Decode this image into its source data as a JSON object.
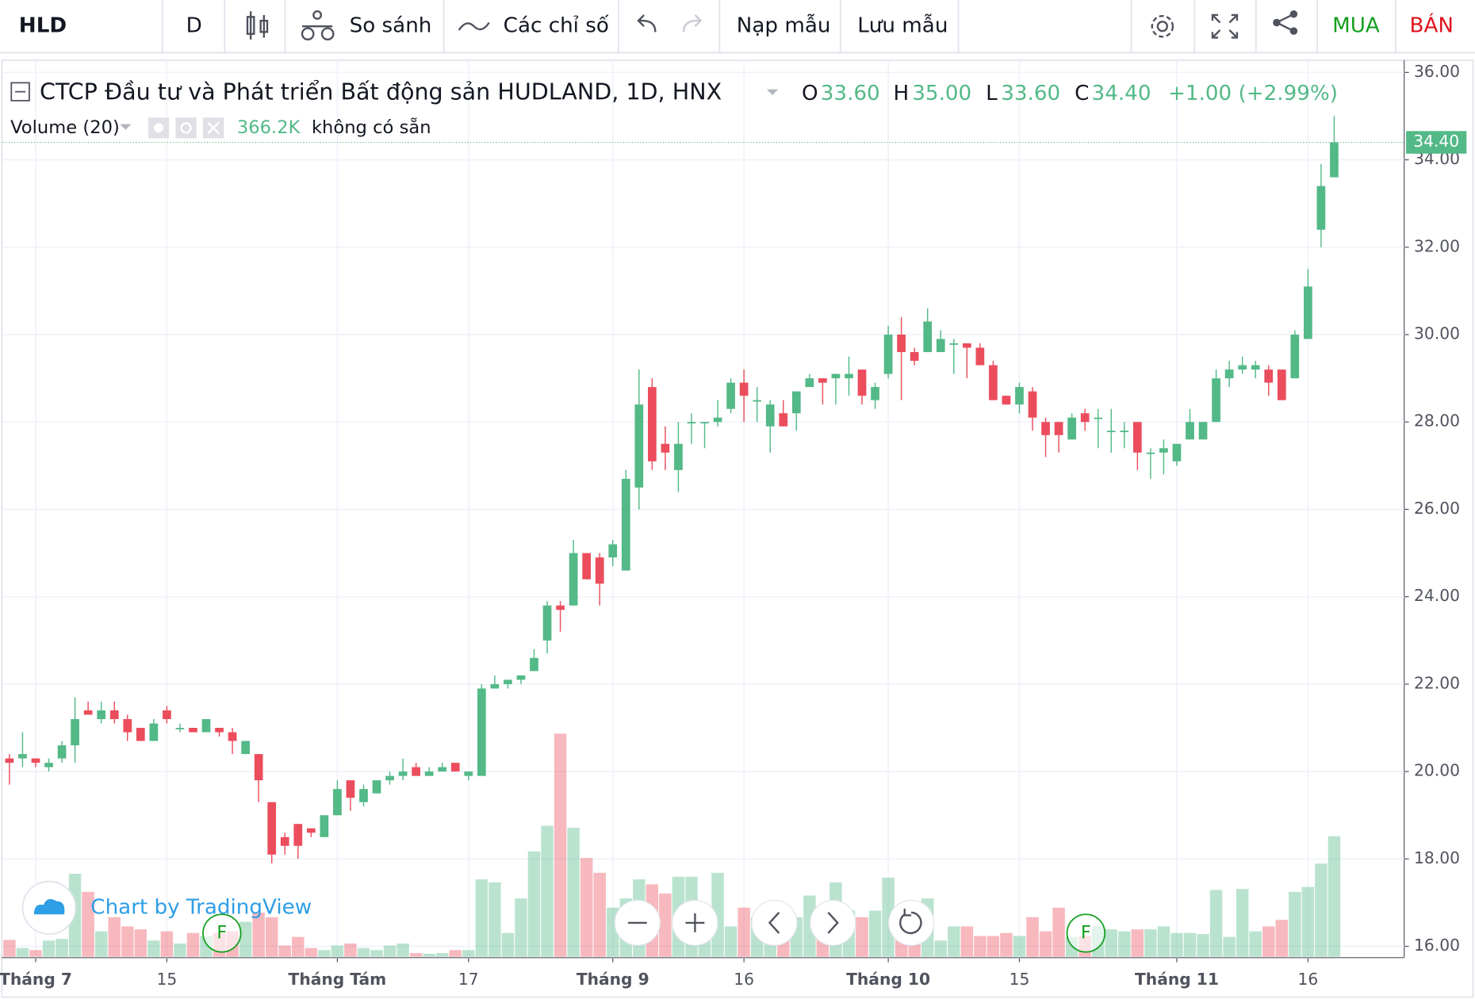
{
  "toolbar": {
    "symbol": "HLD",
    "interval": "D",
    "compare": "So sánh",
    "indicators": "Các chỉ số",
    "load": "Nạp mẫu",
    "save": "Lưu mẫu",
    "buy": "MUA",
    "sell": "BÁN"
  },
  "legend": {
    "title": "CTCP Đầu tư và Phát triển Bất động sản HUDLAND, 1D, HNX",
    "o_label": "O",
    "open": "33.60",
    "h_label": "H",
    "high": "35.00",
    "l_label": "L",
    "low": "33.60",
    "c_label": "C",
    "close": "34.40",
    "change": "+1.00 (+2.99%)",
    "volume_label": "Volume (20)",
    "volume": "366.2K",
    "volume_note": "không có sẵn",
    "price_tag": "34.40"
  },
  "watermark": "Chart by TradingView",
  "markers": [
    "F",
    "F"
  ],
  "chart_data": {
    "type": "candlestick",
    "categories": [
      null,
      null,
      "Tháng 7",
      null,
      null,
      null,
      null,
      null,
      null,
      null,
      null,
      null,
      "15",
      null,
      null,
      null,
      null,
      null,
      null,
      null,
      null,
      null,
      null,
      null,
      null,
      "Tháng Tám",
      null,
      null,
      null,
      null,
      null,
      null,
      null,
      null,
      null,
      "17",
      null,
      null,
      null,
      null,
      null,
      null,
      null,
      null,
      null,
      null,
      "Tháng 9",
      null,
      null,
      null,
      null,
      null,
      null,
      null,
      null,
      null,
      "16",
      null,
      null,
      null,
      null,
      null,
      null,
      null,
      null,
      null,
      null,
      "Tháng 10",
      null,
      null,
      null,
      null,
      null,
      null,
      null,
      null,
      null,
      "15",
      null,
      null,
      null,
      null,
      null,
      null,
      null,
      null,
      null,
      null,
      null,
      "Tháng 11",
      null,
      null,
      null,
      null,
      null,
      null,
      null,
      null,
      null,
      "16",
      null,
      null
    ],
    "open": [
      20.3,
      20.3,
      20.3,
      20.1,
      20.3,
      20.6,
      21.4,
      21.2,
      21.4,
      21.2,
      21.0,
      20.7,
      21.4,
      21.0,
      21.0,
      20.9,
      21.0,
      20.9,
      20.4,
      20.4,
      19.3,
      18.5,
      18.8,
      18.7,
      18.5,
      19.0,
      19.8,
      19.3,
      19.5,
      19.8,
      19.9,
      20.1,
      19.9,
      20.0,
      20.2,
      19.9,
      19.9,
      21.9,
      22.0,
      22.1,
      22.3,
      23.0,
      23.8,
      23.8,
      25.0,
      24.9,
      24.9,
      24.6,
      26.5,
      28.8,
      27.5,
      26.9,
      28.0,
      28.0,
      28.0,
      28.3,
      28.9,
      28.5,
      27.9,
      28.2,
      28.2,
      28.8,
      29.0,
      29.0,
      29.0,
      29.2,
      28.5,
      29.1,
      30.0,
      29.6,
      29.6,
      29.6,
      29.8,
      29.8,
      29.7,
      29.3,
      28.6,
      28.4,
      28.7,
      28.0,
      28.0,
      27.6,
      28.2,
      28.1,
      27.8,
      27.8,
      28.0,
      27.3,
      27.3,
      27.1,
      27.6,
      27.6,
      28.0,
      29.0,
      29.2,
      29.2,
      29.2,
      29.2,
      29.0,
      29.9,
      32.4,
      33.6
    ],
    "high": [
      20.4,
      20.9,
      20.3,
      20.3,
      20.7,
      21.7,
      21.6,
      21.6,
      21.6,
      21.3,
      21.0,
      21.2,
      21.5,
      21.1,
      21.0,
      21.2,
      21.0,
      21.0,
      20.7,
      20.4,
      19.3,
      18.6,
      18.8,
      18.7,
      19.0,
      19.8,
      19.8,
      19.7,
      19.8,
      20.0,
      20.3,
      20.2,
      20.1,
      20.2,
      20.2,
      20.0,
      22.0,
      22.2,
      22.1,
      22.2,
      22.8,
      23.9,
      23.9,
      25.3,
      25.0,
      25.0,
      25.3,
      26.9,
      29.2,
      29.0,
      27.9,
      28.0,
      28.2,
      28.0,
      28.5,
      29.0,
      29.2,
      28.8,
      28.5,
      28.5,
      28.7,
      29.1,
      29.0,
      29.1,
      29.5,
      29.2,
      28.9,
      30.2,
      30.4,
      29.7,
      30.6,
      30.1,
      29.9,
      29.8,
      29.8,
      29.4,
      28.6,
      28.9,
      28.8,
      28.1,
      28.0,
      28.2,
      28.3,
      28.3,
      28.3,
      28.0,
      28.0,
      27.4,
      27.6,
      27.5,
      28.3,
      28.0,
      29.2,
      29.4,
      29.5,
      29.4,
      29.3,
      29.2,
      30.1,
      31.5,
      33.9,
      35.0
    ],
    "low": [
      19.7,
      20.1,
      20.1,
      20.0,
      20.2,
      20.2,
      21.3,
      21.1,
      21.1,
      20.7,
      20.7,
      20.7,
      21.1,
      20.9,
      20.9,
      20.9,
      20.8,
      20.4,
      20.4,
      19.3,
      17.9,
      18.1,
      18.0,
      18.5,
      18.5,
      19.0,
      19.1,
      19.2,
      19.5,
      19.7,
      19.8,
      19.9,
      19.9,
      20.0,
      20.0,
      19.8,
      19.9,
      21.9,
      21.9,
      22.0,
      22.3,
      22.7,
      23.2,
      23.8,
      24.4,
      23.8,
      24.7,
      24.6,
      26.0,
      26.9,
      26.9,
      26.4,
      27.5,
      27.4,
      27.9,
      28.2,
      28.0,
      28.0,
      27.3,
      27.9,
      27.8,
      28.8,
      28.4,
      28.4,
      28.6,
      28.4,
      28.3,
      29.0,
      28.5,
      29.3,
      29.6,
      29.6,
      29.1,
      29.0,
      29.3,
      28.5,
      28.4,
      28.2,
      27.8,
      27.2,
      27.3,
      27.6,
      27.8,
      27.4,
      27.3,
      27.4,
      26.9,
      26.7,
      26.8,
      27.0,
      27.6,
      27.6,
      28.0,
      28.8,
      29.1,
      29.0,
      28.6,
      28.5,
      29.0,
      29.9,
      32.0,
      33.6
    ],
    "close": [
      20.2,
      20.4,
      20.2,
      20.2,
      20.6,
      21.2,
      21.3,
      21.4,
      21.2,
      20.9,
      20.7,
      21.1,
      21.2,
      21.0,
      20.9,
      21.2,
      20.9,
      20.7,
      20.7,
      19.8,
      18.1,
      18.3,
      18.3,
      18.6,
      19.0,
      19.6,
      19.4,
      19.6,
      19.8,
      19.9,
      20.0,
      19.9,
      20.0,
      20.1,
      20.0,
      20.0,
      21.9,
      22.0,
      22.1,
      22.2,
      22.6,
      23.8,
      23.7,
      25.0,
      24.4,
      24.3,
      25.2,
      26.7,
      28.4,
      27.1,
      27.3,
      27.5,
      28.0,
      28.0,
      28.1,
      28.9,
      28.6,
      28.5,
      28.4,
      27.9,
      28.7,
      29.0,
      28.9,
      29.1,
      29.1,
      28.6,
      28.8,
      30.0,
      29.6,
      29.4,
      30.3,
      29.9,
      29.8,
      29.7,
      29.3,
      28.5,
      28.4,
      28.8,
      28.1,
      27.7,
      27.7,
      28.1,
      28.0,
      28.1,
      27.8,
      27.8,
      27.3,
      27.3,
      27.4,
      27.5,
      28.0,
      28.0,
      29.0,
      29.2,
      29.3,
      29.3,
      28.9,
      28.5,
      30.0,
      31.1,
      33.4,
      34.4
    ],
    "volume": [
      51000,
      26000,
      20000,
      49000,
      54000,
      252000,
      197000,
      77000,
      120000,
      92000,
      83000,
      49000,
      77000,
      40000,
      72000,
      63000,
      72000,
      77000,
      106000,
      134000,
      120000,
      34000,
      60000,
      26000,
      20000,
      34000,
      40000,
      26000,
      20000,
      34000,
      40000,
      11000,
      9000,
      11000,
      20000,
      20000,
      235000,
      226000,
      72000,
      177000,
      320000,
      398000,
      678000,
      392000,
      300000,
      255000,
      149000,
      177000,
      235000,
      220000,
      192000,
      243000,
      243000,
      149000,
      255000,
      92000,
      149000,
      120000,
      92000,
      140000,
      120000,
      186000,
      149000,
      226000,
      140000,
      120000,
      140000,
      240000,
      120000,
      72000,
      177000,
      49000,
      92000,
      92000,
      63000,
      63000,
      72000,
      63000,
      120000,
      77000,
      149000,
      60000,
      63000,
      92000,
      83000,
      77000,
      83000,
      83000,
      92000,
      72000,
      72000,
      69000,
      203000,
      60000,
      206000,
      77000,
      92000,
      112000,
      197000,
      212000,
      283000,
      366200
    ],
    "ylim": [
      16,
      36
    ],
    "yticks": [
      {
        "value": 16,
        "label": "16.00"
      },
      {
        "value": 18,
        "label": "18.00"
      },
      {
        "value": 20,
        "label": "20.00"
      },
      {
        "value": 22,
        "label": "22.00"
      },
      {
        "value": 24,
        "label": "24.00"
      },
      {
        "value": 26,
        "label": "26.00"
      },
      {
        "value": 28,
        "label": "28.00"
      },
      {
        "value": 30,
        "label": "30.00"
      },
      {
        "value": 32,
        "label": "32.00"
      },
      {
        "value": 34,
        "label": "34.00"
      },
      {
        "value": 36,
        "label": "36.00"
      }
    ],
    "up_color": "#53b987",
    "down_color": "#eb4d5c",
    "grid": true
  }
}
